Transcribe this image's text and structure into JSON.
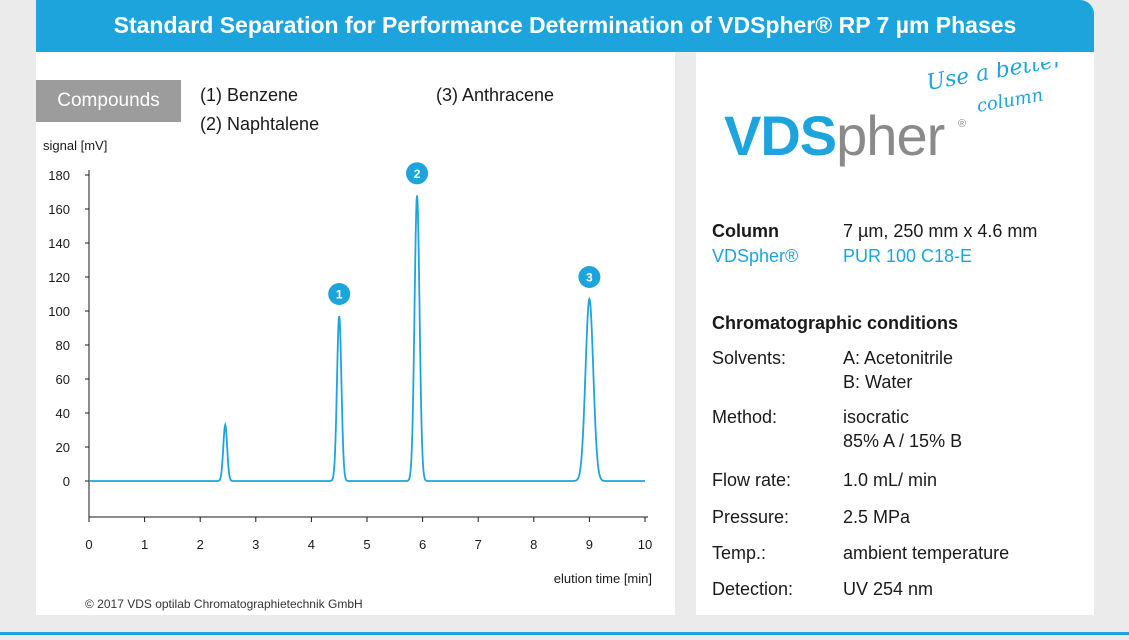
{
  "header": {
    "title": "Standard Separation for Performance Determination of VDSpher® RP 7 µm Phases"
  },
  "compounds": {
    "label": "Compounds",
    "items": [
      "(1) Benzene",
      "(2) Naphtalene",
      "(3) Anthracene"
    ]
  },
  "chart_data": {
    "type": "line",
    "ylabel": "signal [mV]",
    "xlabel": "elution time [min]",
    "xlim": [
      0,
      10
    ],
    "ylim": [
      0,
      180
    ],
    "x_ticks": [
      0,
      1,
      2,
      3,
      4,
      5,
      6,
      7,
      8,
      9,
      10
    ],
    "y_ticks": [
      0,
      20,
      40,
      60,
      80,
      100,
      120,
      140,
      160,
      180
    ],
    "grid": false,
    "series": [
      {
        "peaks": [
          {
            "x": 2.45,
            "y": 33,
            "width": 0.035
          },
          {
            "x": 4.5,
            "y": 97,
            "width": 0.04
          },
          {
            "x": 5.9,
            "y": 168,
            "width": 0.045
          },
          {
            "x": 9.0,
            "y": 107,
            "width": 0.07
          }
        ]
      }
    ],
    "annotations": [
      {
        "label": "1",
        "x": 4.5,
        "y": 110
      },
      {
        "label": "2",
        "x": 5.9,
        "y": 181
      },
      {
        "label": "3",
        "x": 9.0,
        "y": 120
      }
    ],
    "line_color": "#1ea4dd"
  },
  "copyright": "© 2017 VDS optilab Chromatographietechnik GmbH",
  "logo": {
    "vds": "VDS",
    "pher": "pher",
    "registered": "®",
    "slogan_line1": "Use a better",
    "slogan_line2": "column"
  },
  "column": {
    "heading": "Column",
    "value": "7 µm, 250 mm x 4.6 mm",
    "brand": "VDSpher®",
    "product": "PUR 100 C18-E"
  },
  "conditions": {
    "heading": "Chromatographic conditions",
    "solvents_label": "Solvents:",
    "solvents_a": "A: Acetonitrile",
    "solvents_b": "B: Water",
    "method_label": "Method:",
    "method_value": "isocratic",
    "method_ratio": "85% A / 15% B",
    "flow_label": "Flow rate:",
    "flow_value": "1.0 mL/ min",
    "pressure_label": "Pressure:",
    "pressure_value": "2.5 MPa",
    "temp_label": "Temp.:",
    "temp_value": "ambient temperature",
    "detection_label": "Detection:",
    "detection_value": "UV 254 nm"
  },
  "colors": {
    "accent": "#1ea4dd",
    "panel": "#ffffff",
    "background": "#ebebeb",
    "compounds_box": "#9c9c9c"
  }
}
